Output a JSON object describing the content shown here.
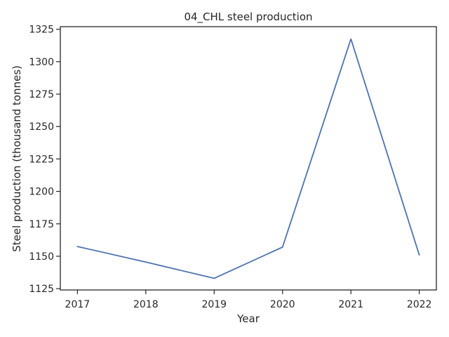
{
  "chart_data": {
    "type": "line",
    "title": "04_CHL steel production",
    "xlabel": "Year",
    "ylabel": "Steel production (thousand tonnes)",
    "x": [
      2017,
      2018,
      2019,
      2020,
      2021,
      2022
    ],
    "series": [
      {
        "values": [
          1157.5,
          1145.5,
          1133.0,
          1157.0,
          1317.5,
          1151.0
        ],
        "color": "#4c72b0"
      }
    ],
    "xticks": [
      "2017",
      "2018",
      "2019",
      "2020",
      "2021",
      "2022"
    ],
    "yticks": [
      "1125",
      "1150",
      "1175",
      "1200",
      "1225",
      "1250",
      "1275",
      "1300",
      "1325"
    ],
    "xlim": [
      2016.75,
      2022.25
    ],
    "ylim": [
      1124.0,
      1327.0
    ],
    "grid": false,
    "legend": false,
    "colors": {
      "axis": "#262626",
      "line": "#4c72b0"
    }
  }
}
